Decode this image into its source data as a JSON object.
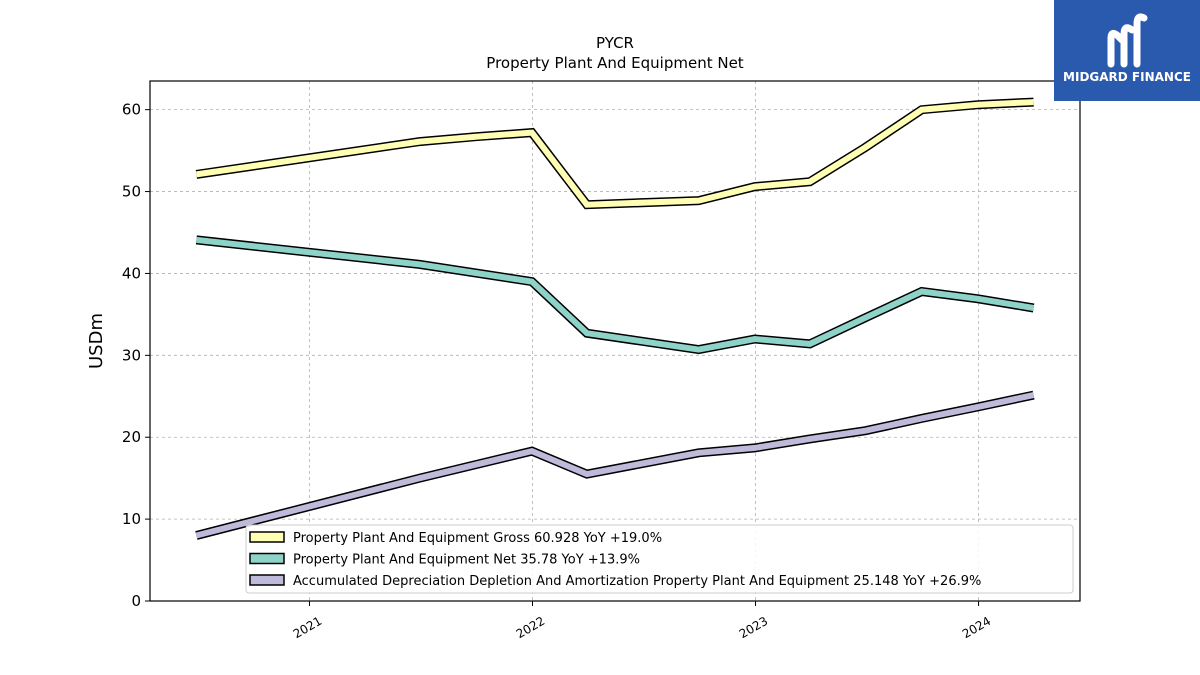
{
  "branding": {
    "name": "MIDGARD FINANCE",
    "background_color": "#2a5aad",
    "icon": "midgard-m-logo-icon"
  },
  "chart_data": {
    "type": "line",
    "title": "PYCR",
    "subtitle": "Property Plant And Equipment Net",
    "xlabel": "",
    "ylabel": "USDm",
    "ylim": [
      0,
      63.5
    ],
    "xlim": [
      "2020-04-15",
      "2024-06-15"
    ],
    "yticks": [
      "0",
      "10",
      "20",
      "30",
      "40",
      "50",
      "60"
    ],
    "xticks": [
      {
        "date": "2021-01-01",
        "label": "2021"
      },
      {
        "date": "2022-01-01",
        "label": "2022"
      },
      {
        "date": "2023-01-01",
        "label": "2023"
      },
      {
        "date": "2024-01-01",
        "label": "2024"
      }
    ],
    "grid": true,
    "legend_position": "lower-right",
    "series": [
      {
        "name": "Property Plant And Equipment Gross",
        "legend_label": "Property Plant And Equipment Gross  60.928 YoY +19.0%",
        "color": "#ffffb3",
        "points": [
          {
            "date": "2020-06-30",
            "value": 52.1
          },
          {
            "date": "2021-06-30",
            "value": 56.1
          },
          {
            "date": "2021-09-30",
            "value": 56.7
          },
          {
            "date": "2021-12-31",
            "value": 57.2
          },
          {
            "date": "2022-03-31",
            "value": 48.4
          },
          {
            "date": "2022-09-30",
            "value": 48.9
          },
          {
            "date": "2022-12-31",
            "value": 50.6
          },
          {
            "date": "2023-03-31",
            "value": 51.2
          },
          {
            "date": "2023-06-30",
            "value": 55.4
          },
          {
            "date": "2023-09-30",
            "value": 60.0
          },
          {
            "date": "2023-12-31",
            "value": 60.6
          },
          {
            "date": "2024-03-31",
            "value": 60.928
          }
        ]
      },
      {
        "name": "Property Plant And Equipment Net",
        "legend_label": "Property Plant And Equipment Net  35.78 YoY +13.9%",
        "color": "#8dd3c7",
        "points": [
          {
            "date": "2020-06-30",
            "value": 44.1
          },
          {
            "date": "2021-06-30",
            "value": 41.1
          },
          {
            "date": "2021-12-31",
            "value": 39.0
          },
          {
            "date": "2022-03-31",
            "value": 32.7
          },
          {
            "date": "2022-09-30",
            "value": 30.7
          },
          {
            "date": "2022-12-31",
            "value": 32.0
          },
          {
            "date": "2023-03-31",
            "value": 31.4
          },
          {
            "date": "2023-06-30",
            "value": 34.6
          },
          {
            "date": "2023-09-30",
            "value": 37.8
          },
          {
            "date": "2023-12-31",
            "value": 36.9
          },
          {
            "date": "2024-03-31",
            "value": 35.78
          }
        ]
      },
      {
        "name": "Accumulated Depreciation Depletion And Amortization Property Plant And Equipment",
        "legend_label": "Accumulated Depreciation Depletion And Amortization Property Plant And Equipment  25.148 YoY +26.9%",
        "color": "#bebada",
        "points": [
          {
            "date": "2020-06-30",
            "value": 8.0
          },
          {
            "date": "2021-06-30",
            "value": 15.0
          },
          {
            "date": "2021-12-31",
            "value": 18.3
          },
          {
            "date": "2022-03-31",
            "value": 15.5
          },
          {
            "date": "2022-09-30",
            "value": 18.1
          },
          {
            "date": "2022-12-31",
            "value": 18.7
          },
          {
            "date": "2023-03-31",
            "value": 19.8
          },
          {
            "date": "2023-06-30",
            "value": 20.8
          },
          {
            "date": "2023-09-30",
            "value": 22.3
          },
          {
            "date": "2023-12-31",
            "value": 23.7
          },
          {
            "date": "2024-03-31",
            "value": 25.148
          }
        ]
      }
    ]
  }
}
